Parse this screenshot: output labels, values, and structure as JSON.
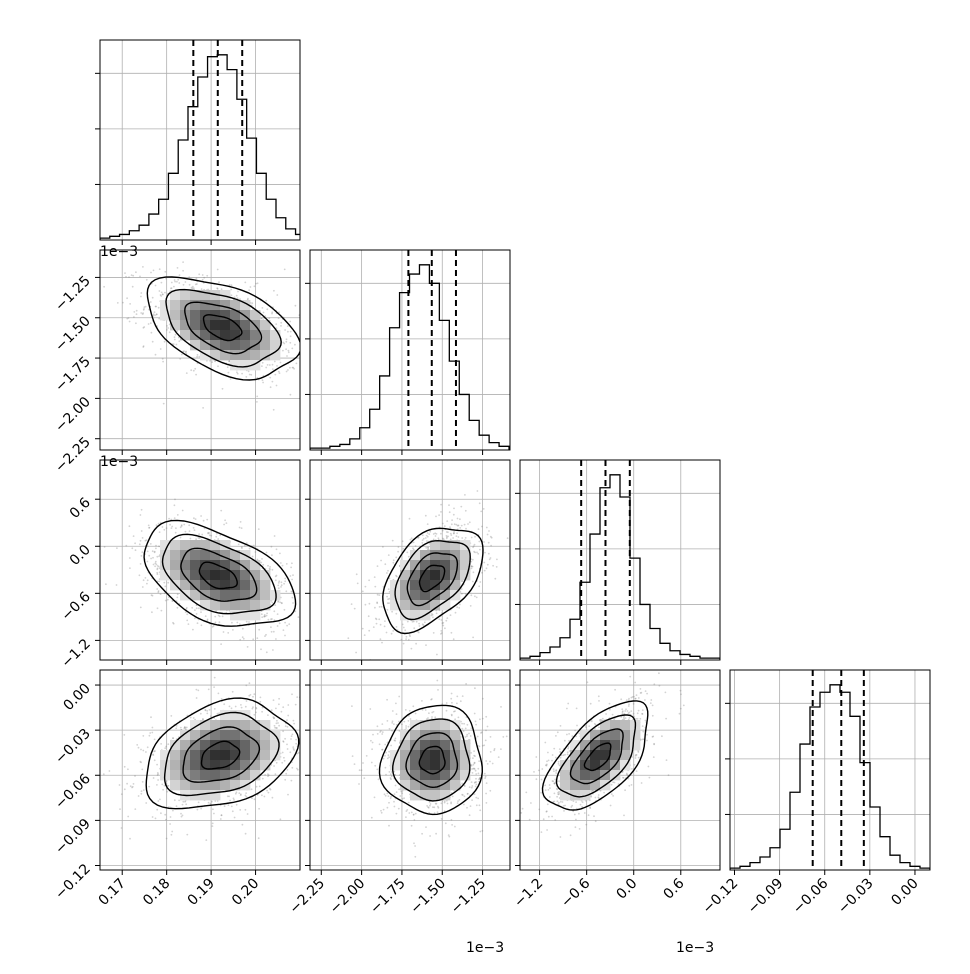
{
  "chart_data": {
    "type": "corner",
    "parameters": [
      {
        "range": [
          0.165,
          0.21
        ],
        "ticks": [
          0.17,
          0.18,
          0.19,
          0.2
        ],
        "tick_labels": [
          "0.17",
          "0.18",
          "0.19",
          "0.20"
        ],
        "offset_text": "",
        "quantiles": [
          0.186,
          0.1915,
          0.197
        ],
        "hist_max_label": "",
        "hist": {
          "start": 0.165,
          "width": 0.0022,
          "counts": [
            1,
            2,
            3,
            5,
            8,
            14,
            22,
            36,
            54,
            72,
            88,
            99,
            100,
            92,
            76,
            55,
            36,
            22,
            12,
            6,
            3,
            2
          ]
        }
      },
      {
        "range": [
          -2.32,
          -1.08
        ],
        "ticks": [
          -2.25,
          -2.0,
          -1.75,
          -1.5,
          -1.25
        ],
        "tick_labels": [
          "−2.25",
          "−2.00",
          "−1.75",
          "−1.50",
          "−1.25"
        ],
        "offset_text": "1e−3",
        "quantiles": [
          -1.71,
          -1.565,
          -1.415
        ],
        "hist": {
          "start": -2.32,
          "width": 0.0617,
          "counts": [
            1,
            1,
            2,
            3,
            6,
            12,
            22,
            40,
            66,
            85,
            95,
            100,
            90,
            70,
            48,
            30,
            16,
            8,
            4,
            2
          ]
        }
      },
      {
        "range": [
          -1.45,
          1.1
        ],
        "ticks": [
          -1.2,
          -0.6,
          0.0,
          0.6
        ],
        "tick_labels": [
          "−1.2",
          "−0.6",
          "0.0",
          "0.6"
        ],
        "offset_text": "1e−3",
        "quantiles": [
          -0.67,
          -0.36,
          -0.05
        ],
        "hist": {
          "start": -1.45,
          "width": 0.1275,
          "counts": [
            1,
            2,
            4,
            7,
            12,
            22,
            42,
            68,
            93,
            100,
            88,
            55,
            30,
            17,
            9,
            5,
            3,
            2,
            1,
            1
          ]
        }
      },
      {
        "range": [
          -0.123,
          0.01
        ],
        "ticks": [
          -0.12,
          -0.09,
          -0.06,
          -0.03,
          0.0
        ],
        "tick_labels": [
          "−0.12",
          "−0.09",
          "−0.06",
          "−0.03",
          "0.00"
        ],
        "offset_text": "",
        "quantiles": [
          -0.068,
          -0.049,
          -0.034
        ],
        "hist": {
          "start": -0.123,
          "width": 0.00665,
          "counts": [
            1,
            2,
            4,
            7,
            12,
            22,
            42,
            68,
            88,
            96,
            100,
            96,
            83,
            58,
            34,
            18,
            8,
            4,
            2,
            1
          ]
        }
      }
    ],
    "pairs": [
      {
        "x": 0,
        "y": 1,
        "mean": [
          0.1925,
          -1.56
        ],
        "sd": [
          0.0085,
          0.155
        ],
        "rho": -0.45
      },
      {
        "x": 0,
        "y": 2,
        "mean": [
          0.1915,
          -0.38
        ],
        "sd": [
          0.0085,
          0.33
        ],
        "rho": -0.45
      },
      {
        "x": 1,
        "y": 2,
        "mean": [
          -1.565,
          -0.4
        ],
        "sd": [
          0.155,
          0.33
        ],
        "rho": 0.45
      },
      {
        "x": 0,
        "y": 3,
        "mean": [
          0.192,
          -0.047
        ],
        "sd": [
          0.0085,
          0.018
        ],
        "rho": 0.3
      },
      {
        "x": 1,
        "y": 3,
        "mean": [
          -1.56,
          -0.05
        ],
        "sd": [
          0.155,
          0.018
        ],
        "rho": 0.05
      },
      {
        "x": 2,
        "y": 3,
        "mean": [
          -0.45,
          -0.048
        ],
        "sd": [
          0.33,
          0.018
        ],
        "rho": 0.6
      }
    ],
    "grid": true,
    "contour_levels": [
      0.5,
      1.0,
      1.5,
      2.0
    ]
  }
}
